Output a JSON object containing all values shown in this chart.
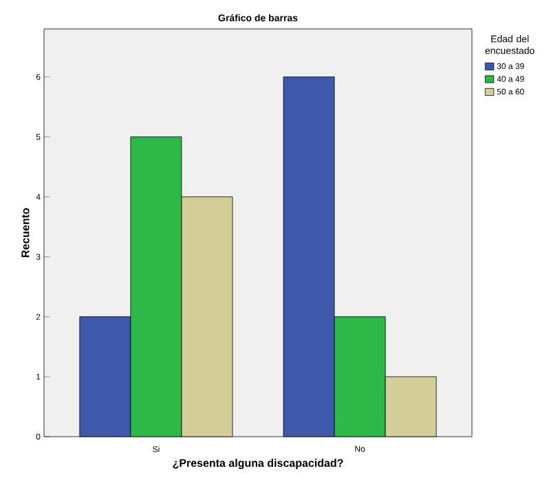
{
  "chart_data": {
    "type": "bar",
    "title": "Gráfico de barras",
    "xlabel": "¿Presenta alguna discapacidad?",
    "ylabel": "Recuento",
    "legend_title": "Edad del encuestado",
    "categories": [
      "Si",
      "No"
    ],
    "series": [
      {
        "name": "30 a 39",
        "color": "#3e58ac",
        "values": [
          2,
          6
        ]
      },
      {
        "name": "40 a 49",
        "color": "#2eb848",
        "values": [
          5,
          2
        ]
      },
      {
        "name": "50 a 60",
        "color": "#d3ce97",
        "values": [
          4,
          1
        ]
      }
    ],
    "ylim": [
      0,
      6.8
    ],
    "yticks": [
      0,
      1,
      2,
      3,
      4,
      5,
      6
    ],
    "grid": false,
    "legend": "top right"
  }
}
